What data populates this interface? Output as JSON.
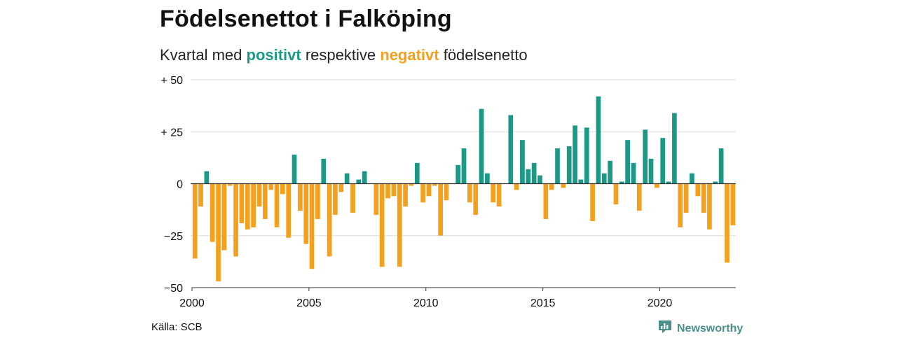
{
  "title": "Födelsenettot i Falköping",
  "subtitle": {
    "prefix": "Kvartal med ",
    "positive_word": "positivt",
    "middle": " respektive ",
    "negative_word": "negativt",
    "suffix": " födelsenetto"
  },
  "source": "Källa: SCB",
  "brand": {
    "name": "Newsworthy",
    "icon": "newsworthy-logo-icon"
  },
  "colors": {
    "positive": "#1b9987",
    "negative": "#f5a01c",
    "grid": "#dddddd",
    "zero": "#333333"
  },
  "chart_data": {
    "type": "bar",
    "x_start": "2000-Q1",
    "frequency": "quarterly",
    "values": [
      -36,
      -11,
      6,
      -28,
      -47,
      -32,
      -1,
      -35,
      -19,
      -22,
      -21,
      -11,
      -17,
      -3,
      -21,
      -5,
      -26,
      14,
      -13,
      -29,
      -41,
      -17,
      12,
      -35,
      -15,
      -4,
      5,
      -14,
      2,
      6,
      0,
      -15,
      -40,
      -7,
      -6,
      -40,
      -11,
      -1,
      10,
      -9,
      -6,
      -1,
      -25,
      -8,
      0,
      9,
      17,
      -9,
      -15,
      36,
      5,
      -9,
      -11,
      0,
      33,
      -3,
      21,
      7,
      10,
      4,
      -17,
      -3,
      17,
      -2,
      18,
      28,
      2,
      27,
      -18,
      42,
      5,
      11,
      -10,
      1,
      21,
      10,
      -13,
      26,
      12,
      -2,
      22,
      1,
      34,
      -21,
      -14,
      5,
      -6,
      -14,
      -22,
      1,
      17,
      -38,
      -20
    ],
    "ylim": [
      -50,
      50
    ],
    "y_ticks": [
      50,
      25,
      0,
      -25,
      -50
    ],
    "y_tick_labels": [
      "+ 50",
      "+ 25",
      "0",
      "−25",
      "−50"
    ],
    "x_ticks": [
      2000,
      2005,
      2010,
      2015,
      2020
    ],
    "x_tick_labels": [
      "2000",
      "2005",
      "2010",
      "2015",
      "2020"
    ],
    "xlim": [
      2000,
      2023.25
    ],
    "grid": true,
    "legend": "subtitle"
  }
}
